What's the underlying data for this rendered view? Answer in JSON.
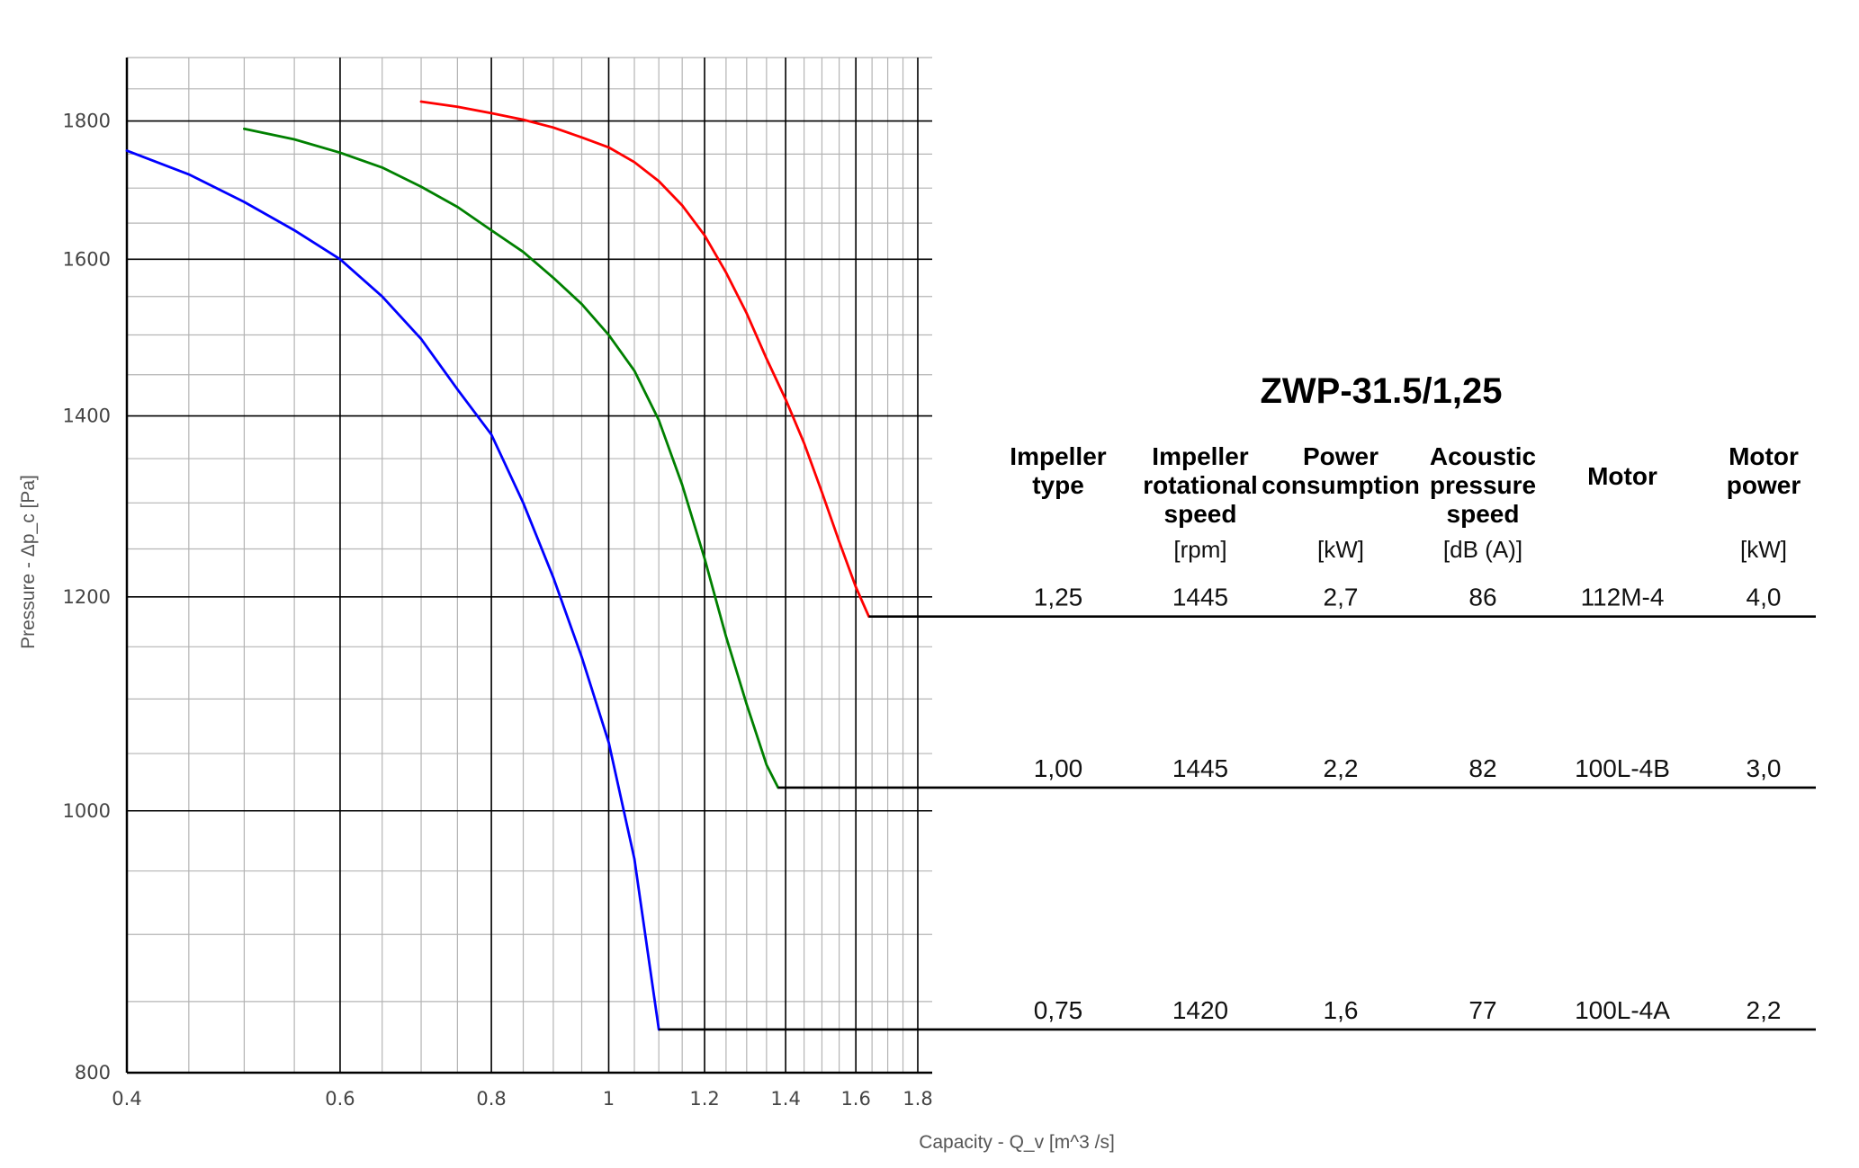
{
  "chart_data": {
    "type": "line",
    "xlabel": "Capacity - Q_v [m^3 /s]",
    "ylabel": "Pressure - Δp_c [Pa]",
    "xscale": "log",
    "yscale": "log",
    "xlim": [
      0.4,
      1.85
    ],
    "ylim": [
      800,
      1900
    ],
    "x_ticks": [
      0.4,
      0.6,
      0.8,
      1,
      1.2,
      1.4,
      1.6,
      1.8
    ],
    "x_tick_labels": [
      "0.4",
      "0.6",
      "0.8",
      "1",
      "1.2",
      "1.4",
      "1.6",
      "1.8"
    ],
    "y_ticks": [
      800,
      1000,
      1200,
      1400,
      1600,
      1800
    ],
    "y_tick_labels": [
      "800",
      "1000",
      "1200",
      "1400",
      "1600",
      "1800"
    ],
    "grid": true,
    "series": [
      {
        "color": "#ff0000",
        "x": [
          0.7,
          0.75,
          0.8,
          0.85,
          0.9,
          0.95,
          1.0,
          1.05,
          1.1,
          1.15,
          1.2,
          1.25,
          1.3,
          1.35,
          1.4,
          1.45,
          1.5,
          1.55,
          1.6,
          1.64
        ],
        "y": [
          1830,
          1822,
          1812,
          1802,
          1790,
          1775,
          1760,
          1738,
          1710,
          1675,
          1633,
          1582,
          1528,
          1470,
          1420,
          1368,
          1312,
          1258,
          1210,
          1180
        ]
      },
      {
        "color": "#008000",
        "x": [
          0.5,
          0.55,
          0.6,
          0.65,
          0.7,
          0.75,
          0.8,
          0.85,
          0.9,
          0.95,
          1.0,
          1.05,
          1.1,
          1.15,
          1.2,
          1.25,
          1.3,
          1.35,
          1.38
        ],
        "y": [
          1788,
          1772,
          1752,
          1730,
          1702,
          1673,
          1640,
          1610,
          1575,
          1540,
          1500,
          1455,
          1395,
          1320,
          1240,
          1160,
          1095,
          1040,
          1020
        ]
      },
      {
        "color": "#0000ff",
        "x": [
          0.4,
          0.45,
          0.5,
          0.55,
          0.6,
          0.65,
          0.7,
          0.75,
          0.8,
          0.85,
          0.9,
          0.95,
          1.0,
          1.05,
          1.1
        ],
        "y": [
          1755,
          1720,
          1680,
          1640,
          1600,
          1550,
          1495,
          1432,
          1378,
          1300,
          1220,
          1140,
          1060,
          960,
          830
        ]
      }
    ]
  },
  "table": {
    "title": "ZWP-31.5/1,25",
    "headers": [
      {
        "lines": [
          "Impeller",
          "type"
        ],
        "unit": ""
      },
      {
        "lines": [
          "Impeller",
          "rotational",
          "speed"
        ],
        "unit": "[rpm]"
      },
      {
        "lines": [
          "Power",
          "consumption"
        ],
        "unit": "[kW]"
      },
      {
        "lines": [
          "Acoustic",
          "pressure",
          "speed"
        ],
        "unit": "[dB (A)]"
      },
      {
        "lines": [
          "Motor"
        ],
        "unit": ""
      },
      {
        "lines": [
          "Motor",
          "power"
        ],
        "unit": "[kW]"
      }
    ],
    "rows": [
      {
        "values": [
          "1,25",
          "1445",
          "2,7",
          "86",
          "112M-4",
          "4,0"
        ],
        "series_index": 0,
        "operating_point": {
          "x": 1.64,
          "y": 1180
        }
      },
      {
        "values": [
          "1,00",
          "1445",
          "2,2",
          "82",
          "100L-4B",
          "3,0"
        ],
        "series_index": 1,
        "operating_point": {
          "x": 1.38,
          "y": 1020
        }
      },
      {
        "values": [
          "0,75",
          "1420",
          "1,6",
          "77",
          "100L-4A",
          "2,2"
        ],
        "series_index": 2,
        "operating_point": {
          "x": 1.1,
          "y": 830
        }
      }
    ]
  }
}
